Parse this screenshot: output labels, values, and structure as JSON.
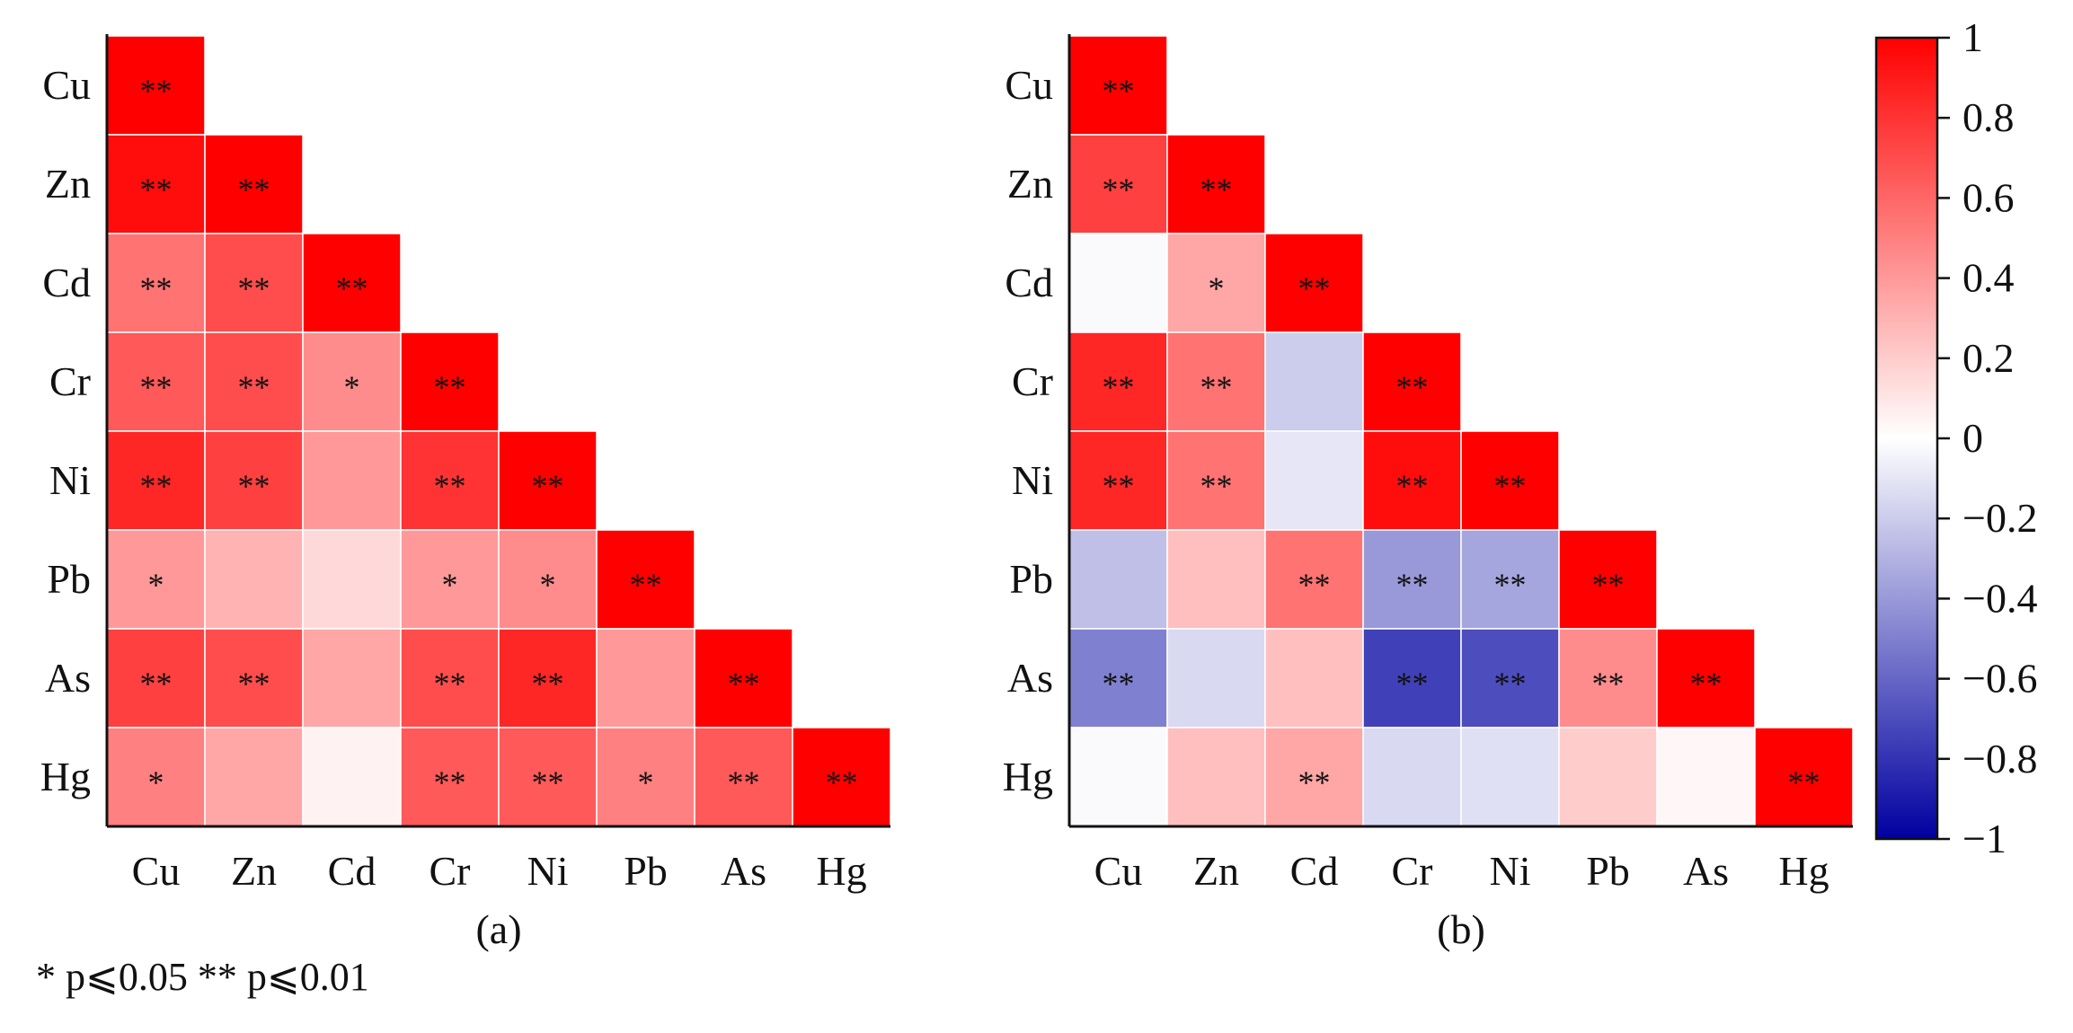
{
  "chart_data": [
    {
      "type": "heatmap",
      "title": "",
      "subtitle": "(a)",
      "variables": [
        "Cu",
        "Zn",
        "Cd",
        "Cr",
        "Ni",
        "Pb",
        "As",
        "Hg"
      ],
      "layout": "lower-triangle",
      "values": [
        [
          1.0
        ],
        [
          0.95,
          1.0
        ],
        [
          0.55,
          0.7,
          1.0
        ],
        [
          0.65,
          0.7,
          0.45,
          1.0
        ],
        [
          0.85,
          0.75,
          0.4,
          0.8,
          1.0
        ],
        [
          0.4,
          0.3,
          0.15,
          0.4,
          0.45,
          1.0
        ],
        [
          0.75,
          0.7,
          0.35,
          0.7,
          0.85,
          0.4,
          1.0
        ],
        [
          0.5,
          0.35,
          0.05,
          0.65,
          0.65,
          0.5,
          0.65,
          1.0
        ]
      ],
      "significance": [
        [
          "**"
        ],
        [
          "**",
          "**"
        ],
        [
          "**",
          "**",
          "**"
        ],
        [
          "**",
          "**",
          "*",
          "**"
        ],
        [
          "**",
          "**",
          "",
          "**",
          "**"
        ],
        [
          "*",
          "",
          "",
          "*",
          "*",
          "**"
        ],
        [
          "**",
          "**",
          "",
          "**",
          "**",
          "",
          "**"
        ],
        [
          "*",
          "",
          "",
          "**",
          "**",
          "*",
          "**",
          "**"
        ]
      ]
    },
    {
      "type": "heatmap",
      "title": "",
      "subtitle": "(b)",
      "variables": [
        "Cu",
        "Zn",
        "Cd",
        "Cr",
        "Ni",
        "Pb",
        "As",
        "Hg"
      ],
      "layout": "lower-triangle",
      "values": [
        [
          1.0
        ],
        [
          0.75,
          1.0
        ],
        [
          -0.02,
          0.35,
          1.0
        ],
        [
          0.85,
          0.55,
          -0.2,
          1.0
        ],
        [
          0.85,
          0.55,
          -0.1,
          0.95,
          1.0
        ],
        [
          -0.25,
          0.25,
          0.55,
          -0.4,
          -0.35,
          1.0
        ],
        [
          -0.5,
          -0.15,
          0.25,
          -0.75,
          -0.7,
          0.45,
          1.0
        ],
        [
          -0.02,
          0.25,
          0.35,
          -0.15,
          -0.12,
          0.2,
          0.03,
          1.0
        ]
      ],
      "significance": [
        [
          "**"
        ],
        [
          "**",
          "**"
        ],
        [
          "",
          "*",
          "**"
        ],
        [
          "**",
          "**",
          "",
          "**"
        ],
        [
          "**",
          "**",
          "",
          "**",
          "**"
        ],
        [
          "",
          "",
          "**",
          "**",
          "**",
          "**"
        ],
        [
          "**",
          "",
          "",
          "**",
          "**",
          "**",
          "**"
        ],
        [
          "",
          "",
          "**",
          "",
          "",
          "",
          "",
          "**"
        ]
      ]
    }
  ],
  "colorbar": {
    "range": [
      -1,
      1
    ],
    "ticks": [
      1,
      0.8,
      0.6,
      0.4,
      0.2,
      0,
      -0.2,
      -0.4,
      -0.6,
      -0.8,
      -1
    ],
    "tick_labels": [
      "1",
      "0.8",
      "0.6",
      "0.4",
      "0.2",
      "0",
      "−0.2",
      "−0.4",
      "−0.6",
      "−0.8",
      "−1"
    ],
    "colors": {
      "negative": "#0000a0",
      "zero": "#ffffff",
      "positive": "#ff0000"
    }
  },
  "footnote": "* p⩽0.05   ** p⩽0.01"
}
